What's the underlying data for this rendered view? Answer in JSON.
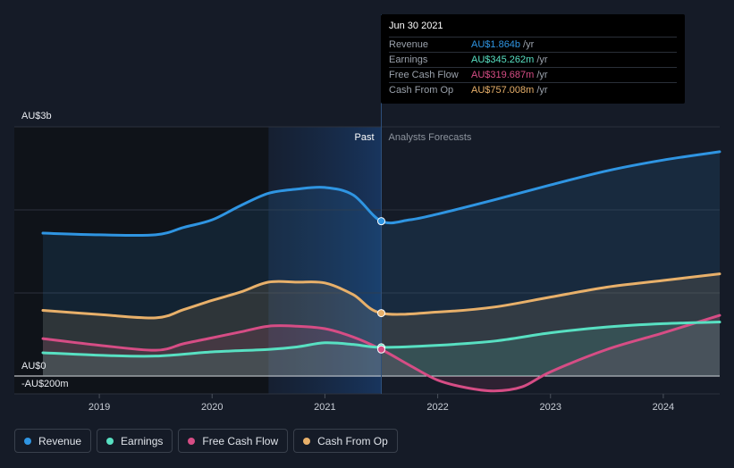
{
  "chart_data": {
    "type": "area",
    "title": "",
    "y_axis": {
      "top_label": "AU$3b",
      "zero_label": "AU$0",
      "bottom_label": "-AU$200m",
      "ylim": [
        -200,
        3000
      ],
      "unit": "AU$m"
    },
    "x_axis": {
      "ticks": [
        "2019",
        "2020",
        "2021",
        "2022",
        "2023",
        "2024"
      ],
      "xlim": [
        2018.5,
        2024.5
      ]
    },
    "regions": {
      "past_label": "Past",
      "forecast_label": "Analysts Forecasts",
      "divider_x": 2021.5,
      "highlight_start": 2020.5
    },
    "series": [
      {
        "name": "Revenue",
        "color": "#2f95e2",
        "x": [
          2018.5,
          2019.0,
          2019.5,
          2019.75,
          2020.0,
          2020.25,
          2020.5,
          2020.75,
          2021.0,
          2021.25,
          2021.5,
          2021.75,
          2022.0,
          2022.5,
          2023.0,
          2023.5,
          2024.0,
          2024.5
        ],
        "values": [
          1720,
          1700,
          1700,
          1790,
          1880,
          2050,
          2200,
          2250,
          2270,
          2180,
          1864,
          1880,
          1950,
          2120,
          2300,
          2470,
          2600,
          2700
        ]
      },
      {
        "name": "Earnings",
        "color": "#58e0c2",
        "x": [
          2018.5,
          2019.0,
          2019.5,
          2020.0,
          2020.5,
          2020.75,
          2021.0,
          2021.25,
          2021.5,
          2022.0,
          2022.5,
          2023.0,
          2023.5,
          2024.0,
          2024.5
        ],
        "values": [
          280,
          250,
          240,
          290,
          320,
          350,
          400,
          380,
          345.262,
          370,
          420,
          520,
          590,
          630,
          650
        ]
      },
      {
        "name": "Free Cash Flow",
        "color": "#d64d85",
        "x": [
          2018.5,
          2019.0,
          2019.5,
          2019.75,
          2020.0,
          2020.25,
          2020.5,
          2020.75,
          2021.0,
          2021.25,
          2021.5,
          2021.75,
          2022.0,
          2022.25,
          2022.5,
          2022.75,
          2023.0,
          2023.5,
          2024.0,
          2024.5
        ],
        "values": [
          450,
          370,
          310,
          390,
          460,
          530,
          600,
          600,
          570,
          470,
          319.687,
          130,
          -50,
          -140,
          -180,
          -130,
          50,
          320,
          520,
          730
        ]
      },
      {
        "name": "Cash From Op",
        "color": "#e8b06a",
        "x": [
          2018.5,
          2019.0,
          2019.5,
          2019.75,
          2020.0,
          2020.25,
          2020.5,
          2020.75,
          2021.0,
          2021.25,
          2021.5,
          2022.0,
          2022.5,
          2023.0,
          2023.5,
          2024.0,
          2024.5
        ],
        "values": [
          790,
          740,
          700,
          800,
          910,
          1010,
          1130,
          1130,
          1120,
          980,
          757.008,
          770,
          830,
          950,
          1070,
          1150,
          1230
        ]
      }
    ],
    "tooltip": {
      "date": "Jun 30 2021",
      "x": 2021.5,
      "rows": [
        {
          "name": "Revenue",
          "value": "AU$1.864b",
          "unit": "/yr",
          "color": "#2f95e2"
        },
        {
          "name": "Earnings",
          "value": "AU$345.262m",
          "unit": "/yr",
          "color": "#58e0c2"
        },
        {
          "name": "Free Cash Flow",
          "value": "AU$319.687m",
          "unit": "/yr",
          "color": "#d64d85"
        },
        {
          "name": "Cash From Op",
          "value": "AU$757.008m",
          "unit": "/yr",
          "color": "#e8b06a"
        }
      ]
    },
    "legend": [
      {
        "label": "Revenue",
        "color": "#2f95e2"
      },
      {
        "label": "Earnings",
        "color": "#58e0c2"
      },
      {
        "label": "Free Cash Flow",
        "color": "#d64d85"
      },
      {
        "label": "Cash From Op",
        "color": "#e8b06a"
      }
    ]
  }
}
